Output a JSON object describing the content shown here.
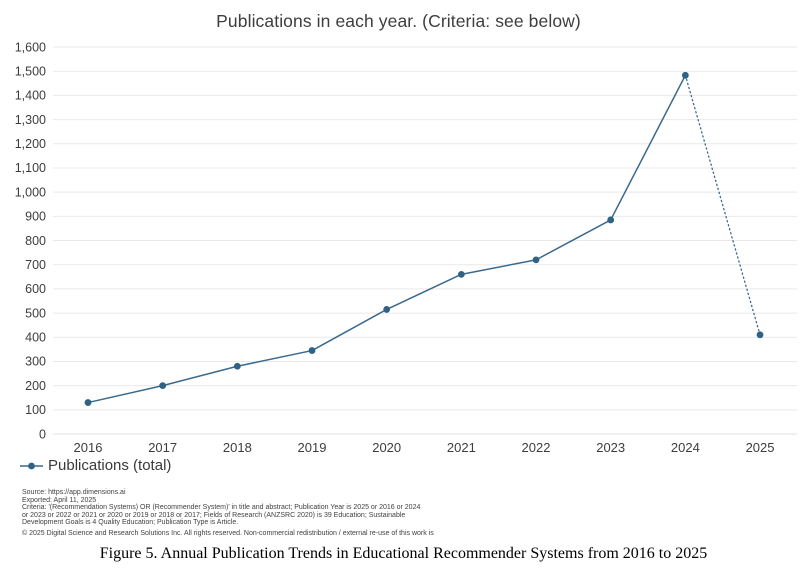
{
  "chart_data": {
    "type": "line",
    "title": "Publications in each year. (Criteria: see below)",
    "categories": [
      "2016",
      "2017",
      "2018",
      "2019",
      "2020",
      "2021",
      "2022",
      "2023",
      "2024",
      "2025"
    ],
    "series": [
      {
        "name": "Publications (total)",
        "values": [
          130,
          200,
          280,
          345,
          515,
          660,
          720,
          885,
          1483,
          410
        ],
        "dotted_last_segment": true
      }
    ],
    "xlabel": "",
    "ylabel": "",
    "ylim": [
      0,
      1600
    ],
    "ytick_step": 100,
    "grid": "horizontal",
    "legend_position": "bottom-left",
    "colors": {
      "line": "#39698c",
      "point": "#2f6285",
      "grid": "#e9e9e9",
      "tick_text": "#3d3d3d"
    }
  },
  "legend": {
    "label": "Publications (total)"
  },
  "footer": {
    "source": "Source: https://app.dimensions.ai",
    "exported": "Exported: April 11, 2025",
    "criteria": "Criteria: '(Recommendation Systems) OR (Recommender System)' in title and abstract; Publication Year is 2025 or 2016 or 2024 or 2023 or 2022 or 2021 or 2020 or 2019 or 2018 or 2017; Fields of Research (ANZSRC 2020) is 39 Education; Sustainable Development Goals is 4 Quality Education; Publication Type is Article.",
    "copyright": "© 2025 Digital Science and Research Solutions Inc. All rights reserved. Non-commercial redistribution / external re-use of this work is"
  },
  "caption": "Figure 5. Annual Publication Trends in Educational Recommender Systems from 2016 to 2025"
}
